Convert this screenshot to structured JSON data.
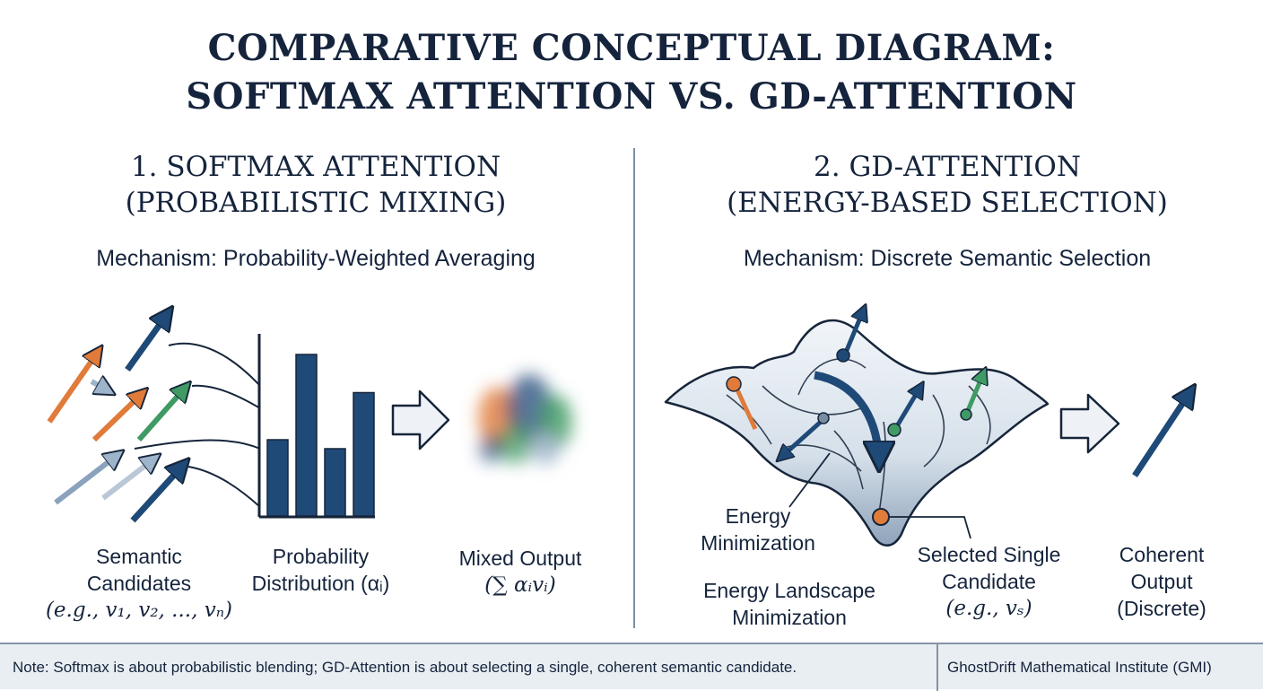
{
  "title": {
    "line1": "COMPARATIVE CONCEPTUAL DIAGRAM:",
    "line2": "SOFTMAX ATTENTION VS. GD-ATTENTION"
  },
  "softmax": {
    "heading_line1": "1. SOFTMAX ATTENTION",
    "heading_line2": "(PROBABILISTIC MIXING)",
    "mechanism": "Mechanism: Probability-Weighted Averaging",
    "candidates_label": {
      "line1": "Semantic",
      "line2": "Candidates",
      "line3": "(e.g., v₁, v₂, ..., vₙ)"
    },
    "distribution_label": {
      "line1": "Probability",
      "line2": "Distribution (αᵢ)"
    },
    "output_label": {
      "line1": "Mixed Output",
      "line2": "(∑ αᵢvᵢ)"
    },
    "bar_levels": [
      0.34,
      0.72,
      0.3,
      0.55
    ]
  },
  "gd": {
    "heading_line1": "2. GD-ATTENTION",
    "heading_line2": "(ENERGY-BASED SELECTION)",
    "mechanism": "Mechanism: Discrete Semantic Selection",
    "energy_min_label": {
      "line1": "Energy",
      "line2": "Minimization"
    },
    "landscape_label": {
      "line1": "Energy Landscape",
      "line2": "Minimization"
    },
    "selected_label": {
      "line1": "Selected Single",
      "line2": "Candidate",
      "line3": "(e.g., vₛ)"
    },
    "output_label": {
      "line1": "Coherent",
      "line2": "Output",
      "line3": "(Discrete)"
    }
  },
  "footer": {
    "note": "Note: Softmax is about probabilistic blending; GD-Attention is about selecting a single, coherent semantic candidate.",
    "org": "GhostDrift Mathematical Institute (GMI)"
  },
  "colors": {
    "navy": "#1f4a78",
    "orange": "#e07b3a",
    "green": "#3f9a63",
    "light_blue": "#9db4cb",
    "landscape": "#dde5ee"
  }
}
